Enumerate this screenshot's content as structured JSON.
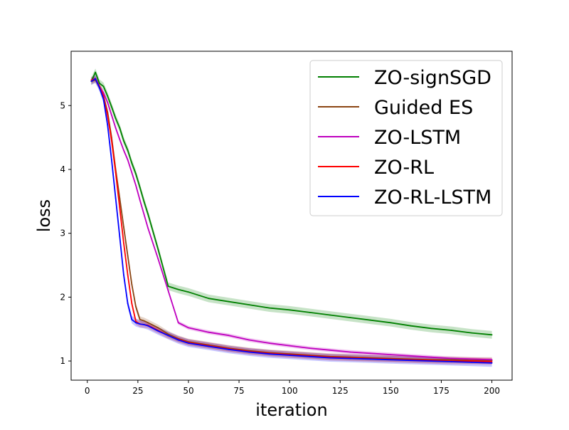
{
  "chart_data": {
    "type": "line",
    "title": "",
    "xlabel": "iteration",
    "ylabel": "loss",
    "xlim": [
      -8,
      210
    ],
    "ylim": [
      0.7,
      5.85
    ],
    "xticks": [
      0,
      25,
      50,
      75,
      100,
      125,
      150,
      175,
      200
    ],
    "yticks": [
      1,
      2,
      3,
      4,
      5
    ],
    "grid": false,
    "legend_position": "top-right",
    "x": [
      2,
      4,
      6,
      8,
      10,
      12,
      14,
      16,
      18,
      20,
      22,
      24,
      26,
      28,
      30,
      35,
      40,
      45,
      50,
      60,
      70,
      80,
      90,
      100,
      110,
      120,
      130,
      140,
      150,
      160,
      170,
      180,
      190,
      200
    ],
    "series": [
      {
        "name": "ZO-signSGD",
        "color": "#008000",
        "band": 0.06,
        "values": [
          5.38,
          5.52,
          5.35,
          5.3,
          5.15,
          4.98,
          4.8,
          4.65,
          4.45,
          4.3,
          4.1,
          3.93,
          3.72,
          3.5,
          3.3,
          2.75,
          2.17,
          2.12,
          2.08,
          1.98,
          1.93,
          1.88,
          1.83,
          1.8,
          1.76,
          1.72,
          1.68,
          1.64,
          1.6,
          1.55,
          1.51,
          1.48,
          1.44,
          1.41
        ]
      },
      {
        "name": "Guided ES",
        "color": "#8B4513",
        "band": 0.05,
        "values": [
          5.38,
          5.4,
          5.3,
          5.15,
          4.9,
          4.5,
          4.0,
          3.55,
          3.1,
          2.65,
          2.2,
          1.85,
          1.65,
          1.63,
          1.6,
          1.52,
          1.42,
          1.35,
          1.3,
          1.25,
          1.2,
          1.16,
          1.13,
          1.11,
          1.09,
          1.07,
          1.06,
          1.05,
          1.04,
          1.03,
          1.02,
          1.02,
          1.01,
          1.01
        ]
      },
      {
        "name": "ZO-LSTM",
        "color": "#BF00BF",
        "band": 0.03,
        "values": [
          5.4,
          5.42,
          5.3,
          5.2,
          5.05,
          4.85,
          4.65,
          4.47,
          4.3,
          4.15,
          3.95,
          3.75,
          3.52,
          3.3,
          3.08,
          2.6,
          2.1,
          1.6,
          1.52,
          1.45,
          1.4,
          1.33,
          1.28,
          1.24,
          1.2,
          1.17,
          1.14,
          1.12,
          1.1,
          1.08,
          1.06,
          1.04,
          1.03,
          1.02
        ]
      },
      {
        "name": "ZO-RL",
        "color": "#FF0000",
        "band": 0.05,
        "values": [
          5.4,
          5.42,
          5.3,
          5.15,
          4.85,
          4.45,
          3.95,
          3.4,
          2.85,
          2.35,
          1.9,
          1.62,
          1.58,
          1.57,
          1.56,
          1.48,
          1.4,
          1.34,
          1.29,
          1.24,
          1.19,
          1.15,
          1.12,
          1.1,
          1.08,
          1.06,
          1.05,
          1.04,
          1.03,
          1.02,
          1.01,
          1.0,
          1.0,
          0.99
        ]
      },
      {
        "name": "ZO-RL-LSTM",
        "color": "#0000FF",
        "band": 0.06,
        "values": [
          5.38,
          5.42,
          5.28,
          5.1,
          4.7,
          4.15,
          3.55,
          2.95,
          2.35,
          1.9,
          1.65,
          1.6,
          1.58,
          1.57,
          1.55,
          1.47,
          1.4,
          1.33,
          1.28,
          1.23,
          1.18,
          1.14,
          1.11,
          1.09,
          1.07,
          1.05,
          1.04,
          1.03,
          1.02,
          1.01,
          1.0,
          0.99,
          0.98,
          0.97
        ]
      }
    ]
  }
}
